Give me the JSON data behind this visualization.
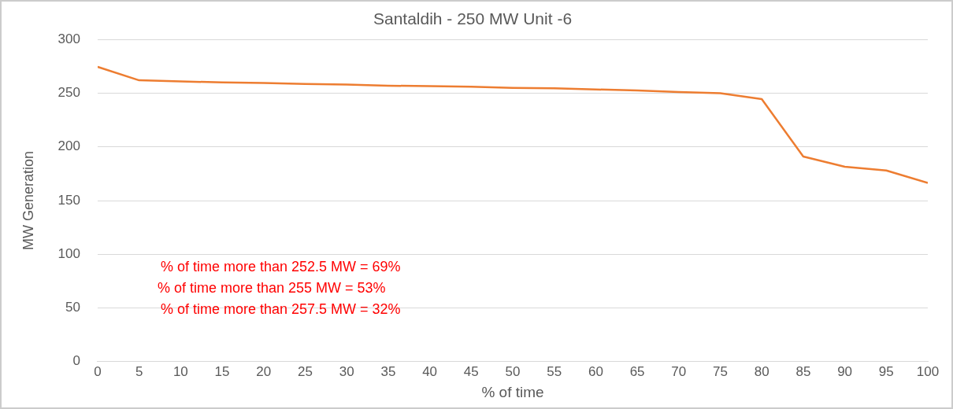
{
  "chart_data": {
    "type": "line",
    "title": "Santaldih - 250 MW Unit -6",
    "xlabel": "% of time",
    "ylabel": "MW Generation",
    "x": [
      0,
      5,
      10,
      15,
      20,
      25,
      30,
      35,
      40,
      45,
      50,
      55,
      60,
      65,
      70,
      75,
      80,
      85,
      90,
      95,
      100
    ],
    "series": [
      {
        "color": "#ed7d31",
        "values": [
          274.5,
          262,
          261,
          260,
          259.5,
          258.5,
          258,
          257,
          256.5,
          256,
          255,
          254.5,
          253.5,
          252.5,
          251,
          250,
          244.5,
          191,
          181.5,
          178,
          166.5
        ]
      }
    ],
    "xlim": [
      0,
      100
    ],
    "xticks": [
      0,
      5,
      10,
      15,
      20,
      25,
      30,
      35,
      40,
      45,
      50,
      55,
      60,
      65,
      70,
      75,
      80,
      85,
      90,
      95,
      100
    ],
    "ylim": [
      0,
      300
    ],
    "yticks": [
      0,
      50,
      100,
      150,
      200,
      250,
      300
    ],
    "grid": "y",
    "legend": false,
    "marker": "none",
    "line_style": "solid",
    "annotations": [
      "% of time more than 252.5 MW = 69%",
      "% of time more than 255 MW = 53%",
      "% of time more than 257.5 MW = 32%"
    ]
  }
}
